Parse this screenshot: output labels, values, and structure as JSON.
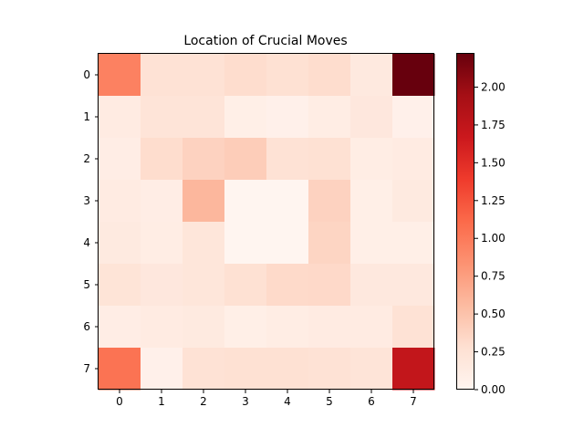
{
  "chart_data": {
    "type": "heatmap",
    "title": "Location of Crucial Moves",
    "xlabel": "",
    "ylabel": "",
    "x_ticks": [
      "0",
      "1",
      "2",
      "3",
      "4",
      "5",
      "6",
      "7"
    ],
    "y_ticks": [
      "0",
      "1",
      "2",
      "3",
      "4",
      "5",
      "6",
      "7"
    ],
    "colormap": "Reds",
    "vmin": 0.0,
    "vmax": 2.22,
    "colorbar_ticks": [
      "0.00",
      "0.25",
      "0.50",
      "0.75",
      "1.00",
      "1.25",
      "1.50",
      "1.75",
      "2.00"
    ],
    "values": [
      [
        0.95,
        0.25,
        0.25,
        0.3,
        0.27,
        0.3,
        0.16,
        2.22
      ],
      [
        0.13,
        0.22,
        0.22,
        0.08,
        0.06,
        0.11,
        0.18,
        0.06
      ],
      [
        0.1,
        0.3,
        0.38,
        0.42,
        0.25,
        0.27,
        0.11,
        0.13
      ],
      [
        0.13,
        0.1,
        0.58,
        0.0,
        0.0,
        0.38,
        0.08,
        0.15
      ],
      [
        0.15,
        0.11,
        0.2,
        0.0,
        0.0,
        0.36,
        0.08,
        0.08
      ],
      [
        0.23,
        0.18,
        0.2,
        0.27,
        0.32,
        0.33,
        0.17,
        0.17
      ],
      [
        0.1,
        0.13,
        0.15,
        0.08,
        0.11,
        0.13,
        0.13,
        0.25
      ],
      [
        1.05,
        0.06,
        0.25,
        0.27,
        0.27,
        0.25,
        0.22,
        1.73
      ]
    ]
  }
}
